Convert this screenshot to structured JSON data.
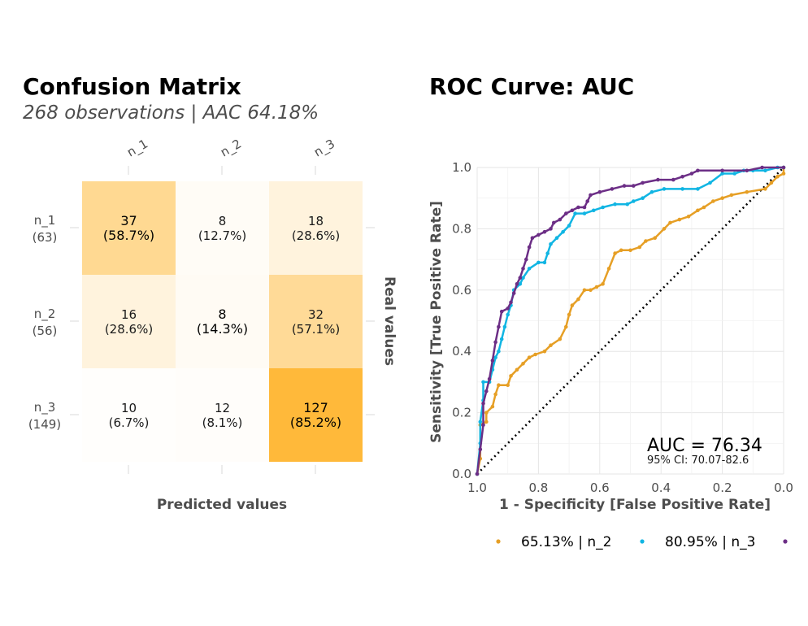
{
  "chart_data": [
    {
      "type": "heatmap",
      "title": "Confusion Matrix",
      "subtitle": "268 observations | AAC 64.18%",
      "xlabel": "Predicted values",
      "ylabel": "Real values",
      "columns": [
        "n_1",
        "n_2",
        "n_3"
      ],
      "rows": [
        {
          "label": "n_1",
          "total": "(63)"
        },
        {
          "label": "n_2",
          "total": "(56)"
        },
        {
          "label": "n_3",
          "total": "(149)"
        }
      ],
      "counts": [
        [
          37,
          8,
          18
        ],
        [
          16,
          8,
          32
        ],
        [
          10,
          12,
          127
        ]
      ],
      "percents": [
        [
          "(58.7%)",
          "(12.7%)",
          "(28.6%)"
        ],
        [
          "(28.6%)",
          "(14.3%)",
          "(57.1%)"
        ],
        [
          "(6.7%)",
          "(8.1%)",
          "(85.2%)"
        ]
      ],
      "color_low": "#ffffff",
      "color_high": "#ffa500"
    },
    {
      "type": "line",
      "title": "ROC Curve: AUC",
      "xlabel": "1 - Specificity [False Positive Rate]",
      "ylabel": "Sensitivity [True Positive Rate]",
      "x_ticks": [
        "1.0",
        "0.8",
        "0.6",
        "0.4",
        "0.2",
        "0.0"
      ],
      "y_ticks": [
        "0.0",
        "0.2",
        "0.4",
        "0.6",
        "0.8",
        "1.0"
      ],
      "xlim": [
        1.0,
        0.0
      ],
      "ylim": [
        0.0,
        1.0
      ],
      "auc_label": "AUC = 76.34",
      "ci_label": "95% CI: 70.07-82.6",
      "diagonal": true,
      "series": [
        {
          "name": "65.13% | n_2",
          "color": "#E69F25",
          "points": [
            [
              1.0,
              0.0
            ],
            [
              0.99,
              0.05
            ],
            [
              0.99,
              0.16
            ],
            [
              0.97,
              0.17
            ],
            [
              0.97,
              0.2
            ],
            [
              0.95,
              0.22
            ],
            [
              0.94,
              0.26
            ],
            [
              0.93,
              0.29
            ],
            [
              0.9,
              0.29
            ],
            [
              0.89,
              0.32
            ],
            [
              0.87,
              0.34
            ],
            [
              0.85,
              0.36
            ],
            [
              0.83,
              0.38
            ],
            [
              0.81,
              0.39
            ],
            [
              0.78,
              0.4
            ],
            [
              0.76,
              0.42
            ],
            [
              0.73,
              0.44
            ],
            [
              0.71,
              0.48
            ],
            [
              0.7,
              0.52
            ],
            [
              0.69,
              0.55
            ],
            [
              0.67,
              0.57
            ],
            [
              0.65,
              0.6
            ],
            [
              0.63,
              0.6
            ],
            [
              0.61,
              0.61
            ],
            [
              0.59,
              0.62
            ],
            [
              0.57,
              0.67
            ],
            [
              0.55,
              0.72
            ],
            [
              0.53,
              0.73
            ],
            [
              0.5,
              0.73
            ],
            [
              0.47,
              0.74
            ],
            [
              0.45,
              0.76
            ],
            [
              0.42,
              0.77
            ],
            [
              0.39,
              0.8
            ],
            [
              0.37,
              0.82
            ],
            [
              0.34,
              0.83
            ],
            [
              0.31,
              0.84
            ],
            [
              0.28,
              0.86
            ],
            [
              0.26,
              0.87
            ],
            [
              0.23,
              0.89
            ],
            [
              0.2,
              0.9
            ],
            [
              0.17,
              0.91
            ],
            [
              0.12,
              0.92
            ],
            [
              0.06,
              0.93
            ],
            [
              0.04,
              0.95
            ],
            [
              0.02,
              0.97
            ],
            [
              0.0,
              0.98
            ],
            [
              0.0,
              1.0
            ]
          ]
        },
        {
          "name": "80.95% | n_3",
          "color": "#10B5E3",
          "points": [
            [
              1.0,
              0.0
            ],
            [
              0.99,
              0.1
            ],
            [
              0.99,
              0.17
            ],
            [
              0.98,
              0.24
            ],
            [
              0.98,
              0.3
            ],
            [
              0.96,
              0.3
            ],
            [
              0.95,
              0.34
            ],
            [
              0.94,
              0.38
            ],
            [
              0.93,
              0.4
            ],
            [
              0.92,
              0.44
            ],
            [
              0.91,
              0.48
            ],
            [
              0.9,
              0.52
            ],
            [
              0.89,
              0.55
            ],
            [
              0.88,
              0.6
            ],
            [
              0.86,
              0.62
            ],
            [
              0.85,
              0.64
            ],
            [
              0.83,
              0.67
            ],
            [
              0.8,
              0.69
            ],
            [
              0.78,
              0.69
            ],
            [
              0.77,
              0.72
            ],
            [
              0.76,
              0.75
            ],
            [
              0.74,
              0.77
            ],
            [
              0.72,
              0.79
            ],
            [
              0.7,
              0.81
            ],
            [
              0.68,
              0.85
            ],
            [
              0.65,
              0.85
            ],
            [
              0.62,
              0.86
            ],
            [
              0.59,
              0.87
            ],
            [
              0.55,
              0.88
            ],
            [
              0.51,
              0.88
            ],
            [
              0.49,
              0.89
            ],
            [
              0.46,
              0.9
            ],
            [
              0.43,
              0.92
            ],
            [
              0.39,
              0.93
            ],
            [
              0.33,
              0.93
            ],
            [
              0.28,
              0.93
            ],
            [
              0.24,
              0.95
            ],
            [
              0.2,
              0.98
            ],
            [
              0.16,
              0.98
            ],
            [
              0.13,
              0.99
            ],
            [
              0.1,
              0.99
            ],
            [
              0.06,
              0.99
            ],
            [
              0.02,
              1.0
            ],
            [
              0.0,
              1.0
            ]
          ]
        },
        {
          "name": "",
          "color": "#6C2E86",
          "points": [
            [
              1.0,
              0.0
            ],
            [
              0.99,
              0.08
            ],
            [
              0.98,
              0.16
            ],
            [
              0.98,
              0.23
            ],
            [
              0.97,
              0.27
            ],
            [
              0.96,
              0.31
            ],
            [
              0.95,
              0.37
            ],
            [
              0.94,
              0.43
            ],
            [
              0.93,
              0.48
            ],
            [
              0.92,
              0.53
            ],
            [
              0.9,
              0.54
            ],
            [
              0.89,
              0.56
            ],
            [
              0.88,
              0.59
            ],
            [
              0.87,
              0.62
            ],
            [
              0.86,
              0.64
            ],
            [
              0.85,
              0.67
            ],
            [
              0.84,
              0.7
            ],
            [
              0.83,
              0.74
            ],
            [
              0.82,
              0.77
            ],
            [
              0.8,
              0.78
            ],
            [
              0.78,
              0.79
            ],
            [
              0.76,
              0.8
            ],
            [
              0.75,
              0.82
            ],
            [
              0.73,
              0.83
            ],
            [
              0.71,
              0.85
            ],
            [
              0.69,
              0.86
            ],
            [
              0.67,
              0.87
            ],
            [
              0.65,
              0.87
            ],
            [
              0.64,
              0.89
            ],
            [
              0.63,
              0.91
            ],
            [
              0.6,
              0.92
            ],
            [
              0.56,
              0.93
            ],
            [
              0.52,
              0.94
            ],
            [
              0.49,
              0.94
            ],
            [
              0.46,
              0.95
            ],
            [
              0.41,
              0.96
            ],
            [
              0.36,
              0.96
            ],
            [
              0.33,
              0.97
            ],
            [
              0.3,
              0.98
            ],
            [
              0.28,
              0.99
            ],
            [
              0.2,
              0.99
            ],
            [
              0.12,
              0.99
            ],
            [
              0.07,
              1.0
            ],
            [
              0.0,
              1.0
            ]
          ]
        }
      ]
    }
  ]
}
